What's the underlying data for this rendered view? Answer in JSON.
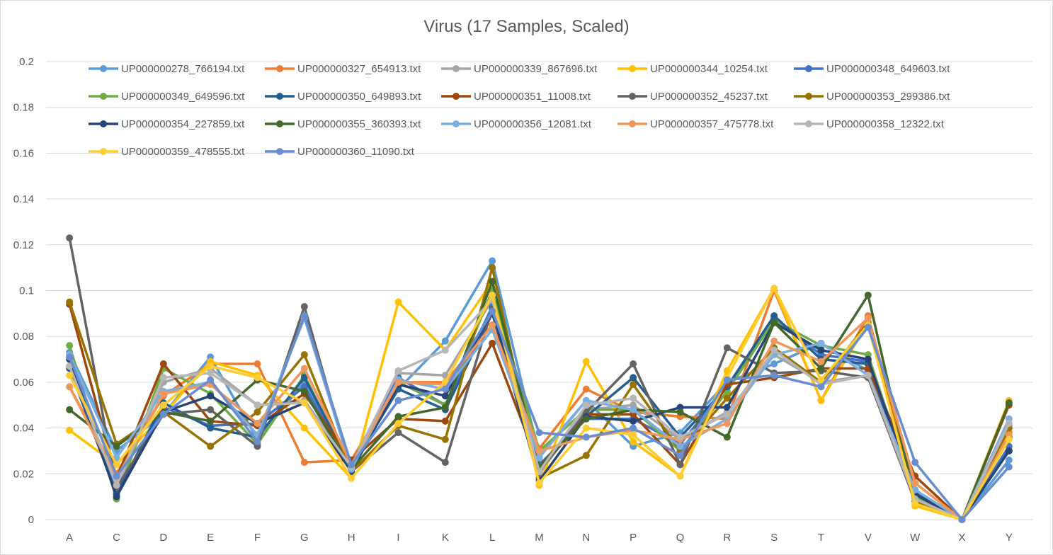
{
  "chart_data": {
    "type": "line",
    "title": "Virus (17 Samples, Scaled)",
    "xlabel": "",
    "ylabel": "",
    "ylim": [
      0,
      0.2
    ],
    "yticks": [
      0,
      0.02,
      0.04,
      0.06,
      0.08,
      0.1,
      0.12,
      0.14,
      0.16,
      0.18,
      0.2
    ],
    "ytick_labels": [
      "0",
      "0.02",
      "0.04",
      "0.06",
      "0.08",
      "0.1",
      "0.12",
      "0.14",
      "0.16",
      "0.18",
      "0.2"
    ],
    "grid": true,
    "legend_position": "top",
    "categories": [
      "A",
      "C",
      "D",
      "E",
      "F",
      "G",
      "H",
      "I",
      "K",
      "L",
      "M",
      "N",
      "P",
      "Q",
      "R",
      "S",
      "T",
      "V",
      "W",
      "X",
      "Y"
    ],
    "series": [
      {
        "name": "UP000000278_766194.txt",
        "color": "#5B9BD5",
        "values": [
          0.073,
          0.03,
          0.046,
          0.071,
          0.035,
          0.06,
          0.023,
          0.057,
          0.078,
          0.113,
          0.028,
          0.052,
          0.032,
          0.038,
          0.06,
          0.068,
          0.077,
          0.065,
          0.01,
          0.0,
          0.026
        ]
      },
      {
        "name": "UP000000327_654913.txt",
        "color": "#ED7D31",
        "values": [
          0.058,
          0.02,
          0.054,
          0.068,
          0.068,
          0.025,
          0.026,
          0.06,
          0.06,
          0.085,
          0.031,
          0.057,
          0.047,
          0.045,
          0.044,
          0.1,
          0.052,
          0.089,
          0.012,
          0.0,
          0.038
        ]
      },
      {
        "name": "UP000000339_867696.txt",
        "color": "#A5A5A5",
        "values": [
          0.067,
          0.013,
          0.06,
          0.066,
          0.05,
          0.052,
          0.024,
          0.064,
          0.063,
          0.096,
          0.02,
          0.048,
          0.05,
          0.035,
          0.047,
          0.072,
          0.06,
          0.063,
          0.01,
          0.0,
          0.04
        ]
      },
      {
        "name": "UP000000344_10254.txt",
        "color": "#FFC000",
        "values": [
          0.039,
          0.024,
          0.046,
          0.069,
          0.063,
          0.04,
          0.018,
          0.095,
          0.074,
          0.104,
          0.015,
          0.069,
          0.034,
          0.019,
          0.065,
          0.101,
          0.052,
          0.086,
          0.006,
          0.0,
          0.052
        ]
      },
      {
        "name": "UP000000348_649603.txt",
        "color": "#4472C4",
        "values": [
          0.071,
          0.012,
          0.049,
          0.041,
          0.042,
          0.058,
          0.024,
          0.062,
          0.05,
          0.093,
          0.024,
          0.044,
          0.044,
          0.033,
          0.058,
          0.088,
          0.072,
          0.069,
          0.013,
          0.0,
          0.032
        ]
      },
      {
        "name": "UP000000349_649596.txt",
        "color": "#70AD47",
        "values": [
          0.076,
          0.009,
          0.066,
          0.055,
          0.033,
          0.063,
          0.022,
          0.06,
          0.05,
          0.1,
          0.03,
          0.048,
          0.048,
          0.03,
          0.056,
          0.087,
          0.076,
          0.072,
          0.01,
          0.0,
          0.041
        ]
      },
      {
        "name": "UP000000350_649893.txt",
        "color": "#255E91",
        "values": [
          0.066,
          0.011,
          0.051,
          0.04,
          0.036,
          0.062,
          0.023,
          0.057,
          0.048,
          0.09,
          0.022,
          0.045,
          0.062,
          0.036,
          0.058,
          0.089,
          0.07,
          0.068,
          0.012,
          0.0,
          0.03
        ]
      },
      {
        "name": "UP000000351_11008.txt",
        "color": "#9E480E",
        "values": [
          0.094,
          0.018,
          0.068,
          0.043,
          0.041,
          0.055,
          0.026,
          0.044,
          0.043,
          0.077,
          0.023,
          0.046,
          0.046,
          0.024,
          0.059,
          0.062,
          0.066,
          0.066,
          0.019,
          0.0,
          0.05
        ]
      },
      {
        "name": "UP000000352_45237.txt",
        "color": "#636363",
        "values": [
          0.123,
          0.014,
          0.046,
          0.048,
          0.032,
          0.093,
          0.021,
          0.038,
          0.025,
          0.092,
          0.021,
          0.047,
          0.068,
          0.024,
          0.075,
          0.064,
          0.065,
          0.062,
          0.008,
          0.0,
          0.036
        ]
      },
      {
        "name": "UP000000353_299386.txt",
        "color": "#997300",
        "values": [
          0.095,
          0.033,
          0.047,
          0.032,
          0.047,
          0.072,
          0.021,
          0.041,
          0.035,
          0.11,
          0.018,
          0.028,
          0.059,
          0.03,
          0.053,
          0.075,
          0.06,
          0.086,
          0.008,
          0.0,
          0.04
        ]
      },
      {
        "name": "UP000000354_227859.txt",
        "color": "#264478",
        "values": [
          0.07,
          0.01,
          0.047,
          0.054,
          0.042,
          0.051,
          0.021,
          0.059,
          0.054,
          0.091,
          0.017,
          0.045,
          0.043,
          0.049,
          0.049,
          0.086,
          0.074,
          0.07,
          0.011,
          0.0,
          0.03
        ]
      },
      {
        "name": "UP000000355_360393.txt",
        "color": "#43682B",
        "values": [
          0.048,
          0.032,
          0.047,
          0.043,
          0.061,
          0.056,
          0.022,
          0.045,
          0.049,
          0.104,
          0.023,
          0.044,
          0.048,
          0.047,
          0.036,
          0.086,
          0.066,
          0.098,
          0.009,
          0.0,
          0.051
        ]
      },
      {
        "name": "UP000000356_12081.txt",
        "color": "#7CAFDD",
        "values": [
          0.072,
          0.027,
          0.056,
          0.06,
          0.037,
          0.088,
          0.022,
          0.061,
          0.057,
          0.083,
          0.027,
          0.052,
          0.048,
          0.032,
          0.044,
          0.072,
          0.077,
          0.063,
          0.013,
          0.0,
          0.044
        ]
      },
      {
        "name": "UP000000357_475778.txt",
        "color": "#F1975A",
        "values": [
          0.058,
          0.018,
          0.055,
          0.059,
          0.042,
          0.066,
          0.024,
          0.06,
          0.059,
          0.085,
          0.03,
          0.036,
          0.039,
          0.035,
          0.042,
          0.078,
          0.069,
          0.088,
          0.016,
          0.0,
          0.037
        ]
      },
      {
        "name": "UP000000358_12322.txt",
        "color": "#B7B7B7",
        "values": [
          0.067,
          0.015,
          0.062,
          0.064,
          0.05,
          0.051,
          0.023,
          0.065,
          0.074,
          0.096,
          0.021,
          0.05,
          0.053,
          0.036,
          0.046,
          0.074,
          0.059,
          0.063,
          0.009,
          0.0,
          0.042
        ]
      },
      {
        "name": "UP000000359_478555.txt",
        "color": "#FFCD33",
        "values": [
          0.063,
          0.024,
          0.05,
          0.067,
          0.062,
          0.051,
          0.018,
          0.042,
          0.06,
          0.098,
          0.016,
          0.04,
          0.037,
          0.019,
          0.062,
          0.101,
          0.061,
          0.085,
          0.007,
          0.0,
          0.035
        ]
      },
      {
        "name": "UP000000360_11090.txt",
        "color": "#698ED0",
        "values": [
          0.071,
          0.019,
          0.046,
          0.061,
          0.034,
          0.089,
          0.024,
          0.052,
          0.057,
          0.091,
          0.038,
          0.036,
          0.04,
          0.028,
          0.061,
          0.063,
          0.058,
          0.084,
          0.025,
          0.0,
          0.023
        ]
      }
    ]
  }
}
